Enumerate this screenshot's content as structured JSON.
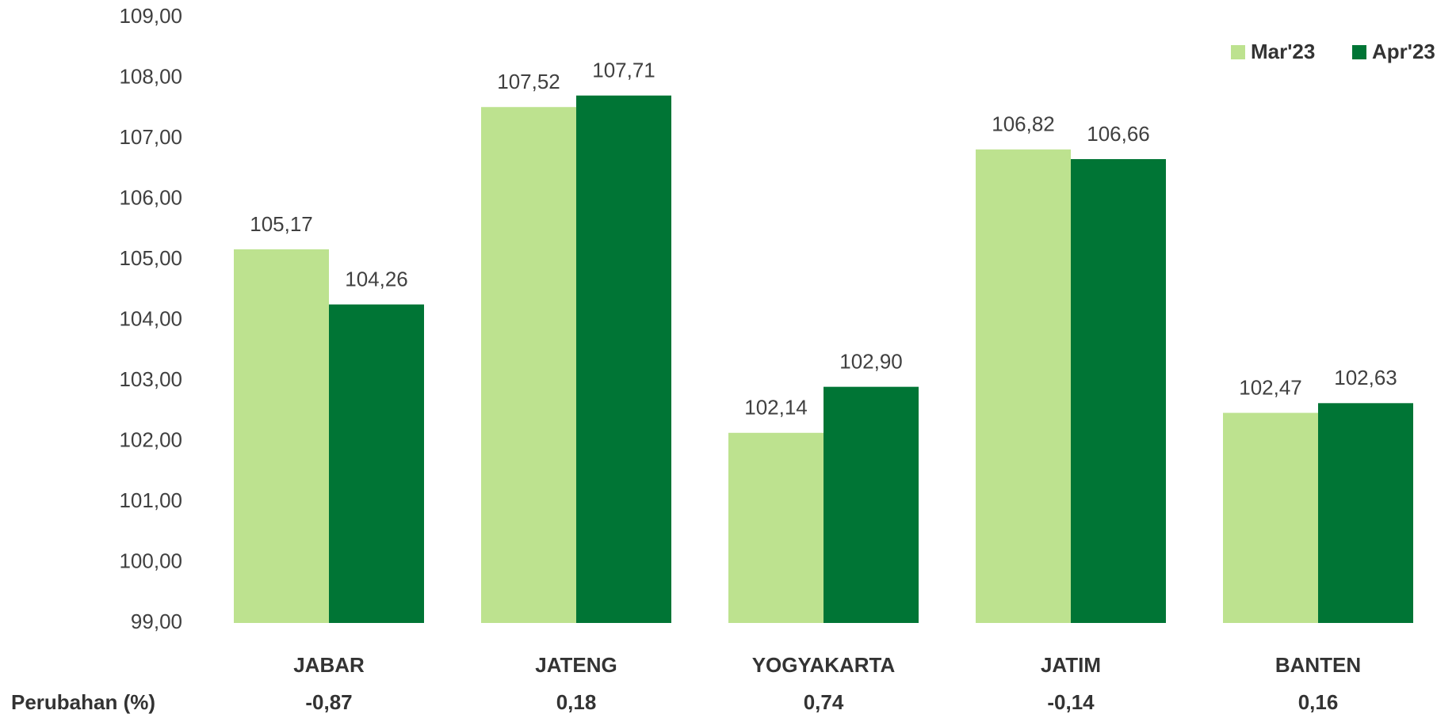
{
  "chart_data": {
    "type": "bar",
    "categories": [
      "JABAR",
      "JATENG",
      "YOGYAKARTA",
      "JATIM",
      "BANTEN"
    ],
    "series": [
      {
        "name": "Mar'23",
        "color": "#bde28f",
        "values": [
          105.17,
          107.52,
          102.14,
          106.82,
          102.47
        ],
        "value_labels": [
          "105,17",
          "107,52",
          "102,14",
          "106,82",
          "102,47"
        ]
      },
      {
        "name": "Apr'23",
        "color": "#007535",
        "values": [
          104.26,
          107.71,
          102.9,
          106.66,
          102.63
        ],
        "value_labels": [
          "104,26",
          "107,71",
          "102,90",
          "106,66",
          "102,63"
        ]
      }
    ],
    "ylim": [
      99,
      109
    ],
    "yticks": [
      {
        "value": 99,
        "label": "99,00"
      },
      {
        "value": 100,
        "label": "100,00"
      },
      {
        "value": 101,
        "label": "101,00"
      },
      {
        "value": 102,
        "label": "102,00"
      },
      {
        "value": 103,
        "label": "103,00"
      },
      {
        "value": 104,
        "label": "104,00"
      },
      {
        "value": 105,
        "label": "105,00"
      },
      {
        "value": 106,
        "label": "106,00"
      },
      {
        "value": 107,
        "label": "107,00"
      },
      {
        "value": 108,
        "label": "108,00"
      },
      {
        "value": 109,
        "label": "109,00"
      }
    ],
    "grid": false,
    "legend": "top-right",
    "perubahan": {
      "label": "Perubahan (%)",
      "values": [
        -0.87,
        0.18,
        0.74,
        -0.14,
        0.16
      ],
      "value_labels": [
        "-0,87",
        "0,18",
        "0,74",
        "-0,14",
        "0,16"
      ]
    }
  }
}
